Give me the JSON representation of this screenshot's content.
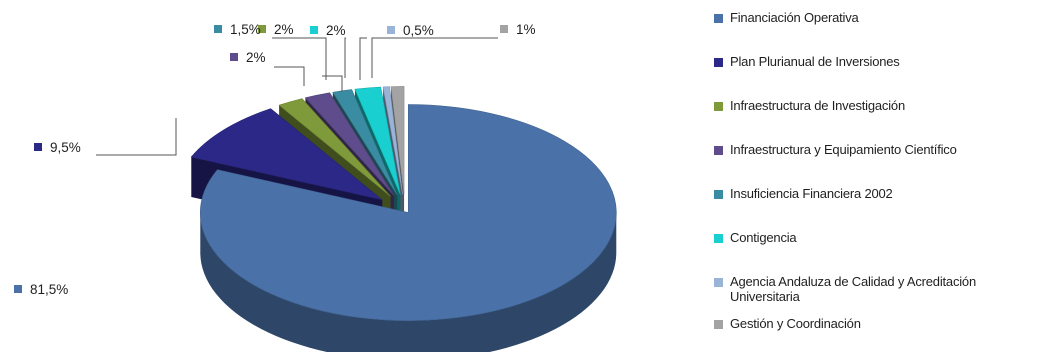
{
  "chart_data": {
    "type": "pie",
    "title": "",
    "series": [
      {
        "values": [
          81.5,
          9.5,
          2,
          2,
          1.5,
          2,
          0.5,
          1
        ]
      }
    ],
    "categories": [
      "Financiación Operativa",
      "Plan Plurianual de Inversiones",
      "Infraestructura de Investigación",
      "Infraestructura y Equipamiento Científico",
      "Insuficiencia Financiera 2002",
      "Contigencia",
      "Agencia Andaluza de Calidad y Acreditación Universitaria",
      "Gestión y Coordinación"
    ],
    "value_labels": [
      "81,5%",
      "9,5%",
      "2%",
      "2%",
      "1,5%",
      "2%",
      "0,5%",
      "1%"
    ],
    "colors": [
      "#4a72a8",
      "#2c2888",
      "#7f9a3a",
      "#5e4c8c",
      "#3a8ca2",
      "#19cfcf",
      "#9ab4d8",
      "#a3a3a3"
    ],
    "style": "3d-pie-exploded",
    "legend_position": "right"
  }
}
